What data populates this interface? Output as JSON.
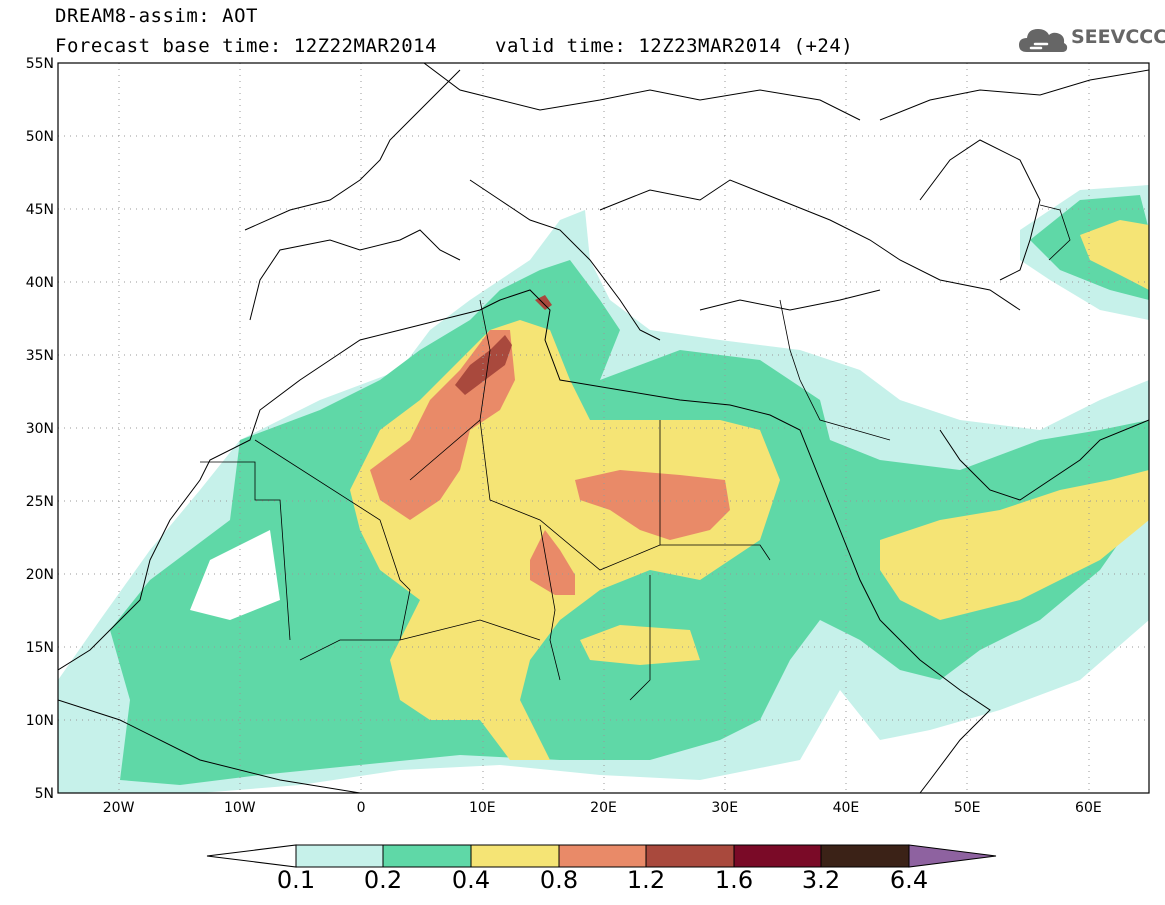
{
  "header": {
    "title": "DREAM8-assim: AOT",
    "base_time": "Forecast base time: 12Z22MAR2014",
    "valid_time": "valid time: 12Z23MAR2014 (+24)"
  },
  "logo": {
    "text": "SEEVCCC",
    "icon": "cloud-icon"
  },
  "map": {
    "lat_labels": [
      "55N",
      "50N",
      "45N",
      "40N",
      "35N",
      "30N",
      "25N",
      "20N",
      "15N",
      "10N",
      "5N"
    ],
    "lon_labels": [
      "20W",
      "10W",
      "0",
      "10E",
      "20E",
      "30E",
      "40E",
      "50E",
      "60E"
    ],
    "lat_range": [
      5,
      55
    ],
    "lon_range": [
      -25,
      65
    ],
    "grid": "dotted"
  },
  "colorbar": {
    "levels": [
      "0.1",
      "0.2",
      "0.4",
      "0.8",
      "1.2",
      "1.6",
      "3.2",
      "6.4"
    ],
    "colors": [
      "#ffffff",
      "#c6f1ea",
      "#5fd8a7",
      "#f5e475",
      "#e98a68",
      "#a9493d",
      "#7a0a27",
      "#3b2217",
      "#8e62a0"
    ]
  }
}
